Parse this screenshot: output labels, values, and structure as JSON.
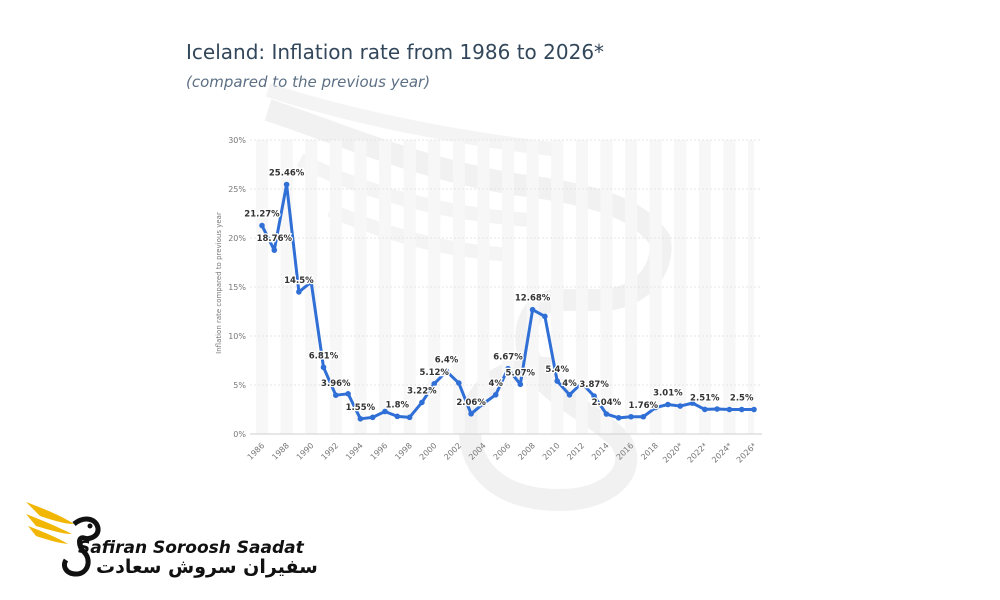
{
  "chart_data": {
    "type": "line",
    "title": "Iceland: Inflation rate from 1986 to 2026*",
    "subtitle": "(compared to the previous year)",
    "ylabel": "Inflation rate compared to previous year",
    "xlabel": "",
    "ylim": [
      0,
      30
    ],
    "yticks": [
      "0%",
      "5%",
      "10%",
      "15%",
      "20%",
      "25%",
      "30%"
    ],
    "grid": true,
    "series_color": "#2f6fd6",
    "x": [
      1986,
      1987,
      1988,
      1989,
      1990,
      1991,
      1992,
      1993,
      1994,
      1995,
      1996,
      1997,
      1998,
      1999,
      2000,
      2001,
      2002,
      2003,
      2004,
      2005,
      2006,
      2007,
      2008,
      2009,
      2010,
      2011,
      2012,
      2013,
      2014,
      2015,
      2016,
      2017,
      2018,
      2019,
      2020,
      2021,
      2022,
      2023,
      2024,
      2025,
      2026
    ],
    "xtick_labels": [
      "1986",
      "1988",
      "1990",
      "1992",
      "1994",
      "1996",
      "1998",
      "2000",
      "2002",
      "2004",
      "2006",
      "2008",
      "2010",
      "2012",
      "2014",
      "2016",
      "2018",
      "2020*",
      "2022*",
      "2024*",
      "2026*"
    ],
    "values": [
      21.27,
      18.76,
      25.46,
      14.5,
      15.5,
      6.81,
      3.96,
      4.1,
      1.55,
      1.7,
      2.3,
      1.8,
      1.7,
      3.22,
      5.12,
      6.4,
      5.2,
      2.06,
      3.1,
      4.0,
      6.67,
      5.07,
      12.68,
      12.0,
      5.4,
      4.0,
      5.2,
      3.87,
      2.04,
      1.65,
      1.76,
      1.76,
      2.7,
      3.01,
      2.85,
      3.15,
      2.51,
      2.55,
      2.5,
      2.5,
      2.5
    ],
    "data_labels": [
      {
        "index": 0,
        "text": "21.27%"
      },
      {
        "index": 1,
        "text": "18.76%"
      },
      {
        "index": 2,
        "text": "25.46%"
      },
      {
        "index": 3,
        "text": "14.5%"
      },
      {
        "index": 5,
        "text": "6.81%"
      },
      {
        "index": 6,
        "text": "3.96%"
      },
      {
        "index": 8,
        "text": "1.55%"
      },
      {
        "index": 11,
        "text": "1.8%"
      },
      {
        "index": 13,
        "text": "3.22%"
      },
      {
        "index": 14,
        "text": "5.12%"
      },
      {
        "index": 15,
        "text": "6.4%"
      },
      {
        "index": 17,
        "text": "2.06%"
      },
      {
        "index": 19,
        "text": "4%"
      },
      {
        "index": 20,
        "text": "6.67%"
      },
      {
        "index": 21,
        "text": "5.07%"
      },
      {
        "index": 22,
        "text": "12.68%"
      },
      {
        "index": 24,
        "text": "5.4%"
      },
      {
        "index": 25,
        "text": "4%"
      },
      {
        "index": 27,
        "text": "3.87%"
      },
      {
        "index": 28,
        "text": "2.04%"
      },
      {
        "index": 31,
        "text": "1.76%"
      },
      {
        "index": 33,
        "text": "3.01%"
      },
      {
        "index": 36,
        "text": "2.51%"
      },
      {
        "index": 39,
        "text": "2.5%"
      }
    ]
  },
  "logo": {
    "name_en": "Safiran Soroosh Saadat",
    "name_fa": "سفیران سروش سعادت",
    "colors": {
      "wing": "#f2b705",
      "dark": "#111111"
    },
    "icon": "winged-bird-logo-icon"
  }
}
